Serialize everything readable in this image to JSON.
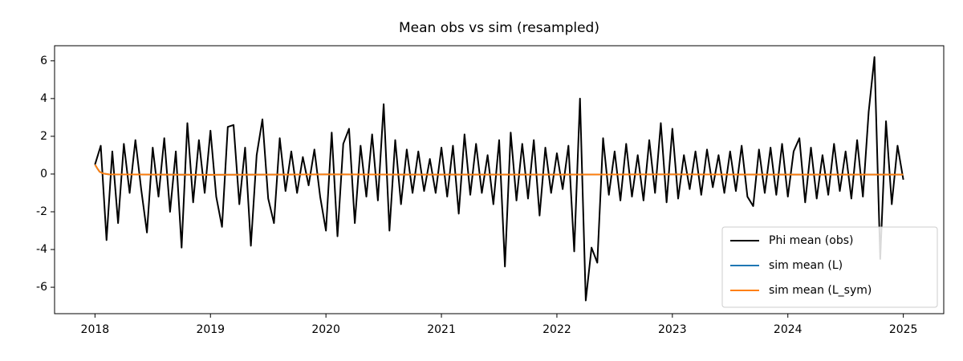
{
  "chart_data": {
    "type": "line",
    "title": "Mean obs vs sim (resampled)",
    "xlim": [
      2017.65,
      2025.35
    ],
    "xticks": [
      2018,
      2019,
      2020,
      2021,
      2022,
      2023,
      2024,
      2025
    ],
    "ylim": [
      -7.4,
      6.8
    ],
    "yticks": [
      -6,
      -4,
      -2,
      0,
      2,
      4,
      6
    ],
    "legend": "lower right",
    "series": [
      {
        "name": "Phi mean (obs)",
        "color": "#000000",
        "x": [
          2018.0,
          2018.05,
          2018.1,
          2018.15,
          2018.2,
          2018.25,
          2018.3,
          2018.35,
          2018.4,
          2018.45,
          2018.5,
          2018.55,
          2018.6,
          2018.65,
          2018.7,
          2018.75,
          2018.8,
          2018.85,
          2018.9,
          2018.95,
          2019.0,
          2019.05,
          2019.1,
          2019.15,
          2019.2,
          2019.25,
          2019.3,
          2019.35,
          2019.4,
          2019.45,
          2019.5,
          2019.55,
          2019.6,
          2019.65,
          2019.7,
          2019.75,
          2019.8,
          2019.85,
          2019.9,
          2019.95,
          2020.0,
          2020.05,
          2020.1,
          2020.15,
          2020.2,
          2020.25,
          2020.3,
          2020.35,
          2020.4,
          2020.45,
          2020.5,
          2020.55,
          2020.6,
          2020.65,
          2020.7,
          2020.75,
          2020.8,
          2020.85,
          2020.9,
          2020.95,
          2021.0,
          2021.05,
          2021.1,
          2021.15,
          2021.2,
          2021.25,
          2021.3,
          2021.35,
          2021.4,
          2021.45,
          2021.5,
          2021.55,
          2021.6,
          2021.65,
          2021.7,
          2021.75,
          2021.8,
          2021.85,
          2021.9,
          2021.95,
          2022.0,
          2022.05,
          2022.1,
          2022.15,
          2022.2,
          2022.25,
          2022.3,
          2022.35,
          2022.4,
          2022.45,
          2022.5,
          2022.55,
          2022.6,
          2022.65,
          2022.7,
          2022.75,
          2022.8,
          2022.85,
          2022.9,
          2022.95,
          2023.0,
          2023.05,
          2023.1,
          2023.15,
          2023.2,
          2023.25,
          2023.3,
          2023.35,
          2023.4,
          2023.45,
          2023.5,
          2023.55,
          2023.6,
          2023.65,
          2023.7,
          2023.75,
          2023.8,
          2023.85,
          2023.9,
          2023.95,
          2024.0,
          2024.05,
          2024.1,
          2024.15,
          2024.2,
          2024.25,
          2024.3,
          2024.35,
          2024.4,
          2024.45,
          2024.5,
          2024.55,
          2024.6,
          2024.65,
          2024.7,
          2024.75,
          2024.8,
          2024.85,
          2024.9,
          2024.95,
          2025.0
        ],
        "values": [
          0.5,
          1.5,
          -3.5,
          1.2,
          -2.6,
          1.6,
          -1.0,
          1.8,
          -0.8,
          -3.1,
          1.4,
          -1.2,
          1.9,
          -2.0,
          1.2,
          -3.9,
          2.7,
          -1.5,
          1.8,
          -1.0,
          2.3,
          -1.2,
          -2.8,
          2.5,
          2.6,
          -1.6,
          1.4,
          -3.8,
          1.0,
          2.9,
          -1.3,
          -2.6,
          1.9,
          -0.9,
          1.2,
          -1.0,
          0.9,
          -0.6,
          1.3,
          -1.2,
          -3.0,
          2.2,
          -3.3,
          1.6,
          2.4,
          -2.6,
          1.5,
          -1.2,
          2.1,
          -1.4,
          3.7,
          -3.0,
          1.8,
          -1.6,
          1.3,
          -1.0,
          1.2,
          -0.9,
          0.8,
          -1.0,
          1.4,
          -1.2,
          1.5,
          -2.1,
          2.1,
          -1.1,
          1.6,
          -1.0,
          1.0,
          -1.6,
          1.8,
          -4.9,
          2.2,
          -1.4,
          1.6,
          -1.3,
          1.8,
          -2.2,
          1.4,
          -1.0,
          1.1,
          -0.8,
          1.5,
          -4.1,
          4.0,
          -6.7,
          -3.9,
          -4.7,
          1.9,
          -1.1,
          1.2,
          -1.4,
          1.6,
          -1.2,
          1.0,
          -1.4,
          1.8,
          -1.0,
          2.7,
          -1.5,
          2.4,
          -1.3,
          1.0,
          -0.8,
          1.2,
          -1.1,
          1.3,
          -0.7,
          1.0,
          -1.0,
          1.2,
          -0.9,
          1.5,
          -1.2,
          -1.7,
          1.3,
          -1.0,
          1.4,
          -1.1,
          1.6,
          -1.2,
          1.2,
          1.9,
          -1.5,
          1.4,
          -1.3,
          1.0,
          -1.1,
          1.6,
          -0.9,
          1.2,
          -1.3,
          1.8,
          -1.2,
          3.3,
          6.2,
          -4.5,
          2.8,
          -1.6,
          1.5,
          -0.3
        ]
      },
      {
        "name": "sim mean (L)",
        "color": "#1f77b4",
        "x": [
          2018.0,
          2018.02,
          2018.04,
          2018.07,
          2018.12,
          2019,
          2020,
          2021,
          2022,
          2023,
          2024,
          2025
        ],
        "values": [
          0.5,
          0.3,
          0.12,
          0.03,
          -0.02,
          -0.04,
          -0.02,
          -0.03,
          -0.03,
          -0.02,
          -0.03,
          -0.03
        ]
      },
      {
        "name": "sim mean (L_sym)",
        "color": "#ff7f0e",
        "x": [
          2018.0,
          2018.02,
          2018.04,
          2018.07,
          2018.12,
          2019,
          2020,
          2021,
          2022,
          2023,
          2024,
          2025
        ],
        "values": [
          0.5,
          0.3,
          0.12,
          0.03,
          -0.02,
          -0.04,
          -0.02,
          -0.03,
          -0.03,
          -0.02,
          -0.03,
          -0.03
        ]
      }
    ]
  }
}
